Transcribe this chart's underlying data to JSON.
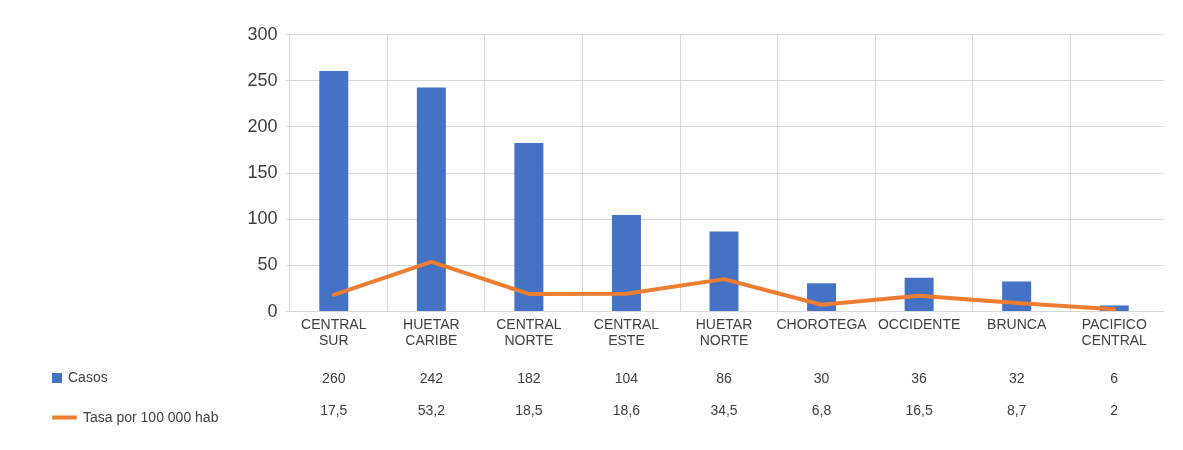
{
  "chart_data": {
    "type": "bar",
    "categories": [
      "CENTRAL SUR",
      "HUETAR CARIBE",
      "CENTRAL NORTE",
      "CENTRAL ESTE",
      "HUETAR NORTE",
      "CHOROTEGA",
      "OCCIDENTE",
      "BRUNCA",
      "PACIFICO CENTRAL"
    ],
    "series": [
      {
        "name": "Casos",
        "color": "#4472c4",
        "values": [
          260,
          242,
          182,
          104,
          86,
          30,
          36,
          32,
          6
        ],
        "value_labels": [
          "260",
          "242",
          "182",
          "104",
          "86",
          "30",
          "36",
          "32",
          "6"
        ]
      },
      {
        "name": "Tasa por 100 000 hab",
        "type": "line",
        "color": "#ed7d31",
        "values": [
          17.5,
          53.2,
          18.5,
          18.6,
          34.5,
          6.8,
          16.5,
          8.7,
          2
        ],
        "value_labels": [
          "17,5",
          "53,2",
          "18,5",
          "18,6",
          "34,5",
          "6,8",
          "16,5",
          "8,7",
          "2"
        ]
      }
    ],
    "ylim": [
      0,
      300
    ],
    "yticks": [
      0,
      50,
      100,
      150,
      200,
      250,
      300
    ],
    "grid": "y",
    "legend": "bottom left"
  }
}
